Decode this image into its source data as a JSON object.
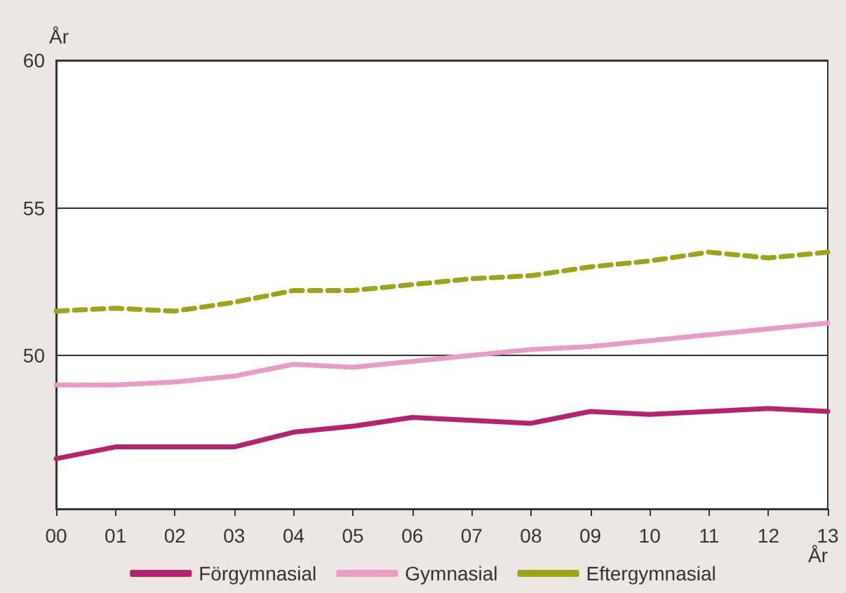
{
  "chart_data": {
    "type": "line",
    "ylabel": "År",
    "xlabel": "År",
    "categories": [
      "00",
      "01",
      "02",
      "03",
      "04",
      "05",
      "06",
      "07",
      "08",
      "09",
      "10",
      "11",
      "12",
      "13"
    ],
    "series": [
      {
        "name": "Förgymnasial",
        "color": "#b5236e",
        "line_style": "solid",
        "values": [
          46.5,
          46.9,
          46.9,
          46.9,
          47.4,
          47.6,
          47.9,
          47.8,
          47.7,
          48.1,
          48.0,
          48.1,
          48.2,
          48.1
        ]
      },
      {
        "name": "Gymnasial",
        "color": "#e99bc3",
        "line_style": "dotted",
        "values": [
          49.0,
          49.0,
          49.1,
          49.3,
          49.7,
          49.6,
          49.8,
          50.0,
          50.2,
          50.3,
          50.5,
          50.7,
          50.9,
          51.1
        ]
      },
      {
        "name": "Eftergymnasial",
        "color": "#9aa51c",
        "line_style": "dashed",
        "values": [
          51.5,
          51.6,
          51.5,
          51.8,
          52.2,
          52.2,
          52.4,
          52.6,
          52.7,
          53.0,
          53.2,
          53.5,
          53.3,
          53.5
        ]
      }
    ],
    "ylim": [
      44.8,
      60
    ],
    "yticks": [
      50,
      55,
      60
    ],
    "grid": "y",
    "legend": "bottom",
    "marker": "none"
  }
}
